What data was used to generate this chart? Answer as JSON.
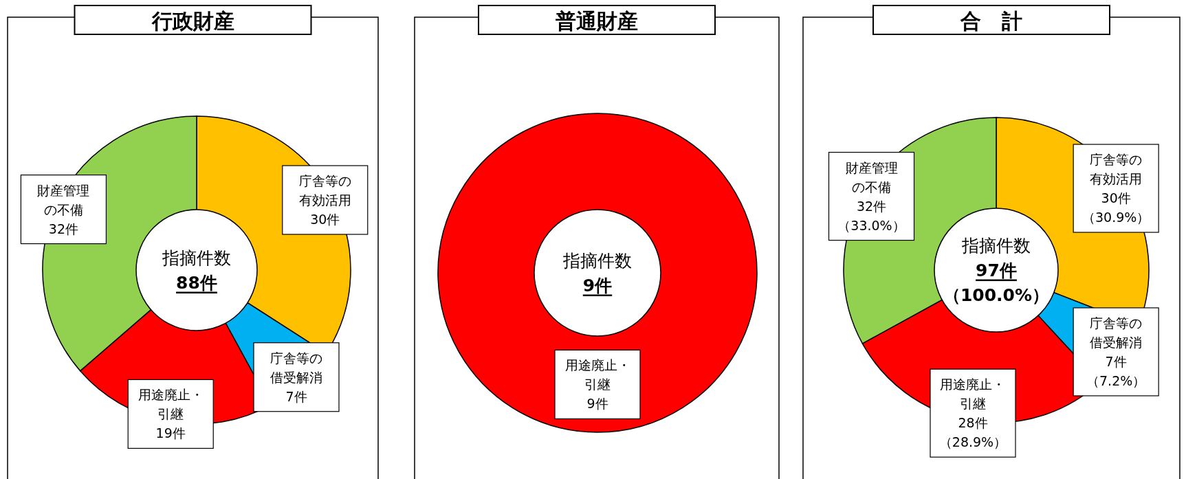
{
  "chart_data": [
    {
      "type": "donut",
      "title": "行政財産",
      "categories": [
        "庁舎等の有効活用",
        "庁舎等の借受解消",
        "用途廃止・引継",
        "財産管理の不備"
      ],
      "values": [
        30,
        7,
        19,
        32
      ],
      "value_labels": [
        "30件",
        "7件",
        "19件",
        "32件"
      ],
      "colors": [
        "#ffc000",
        "#00b0f0",
        "#ff0000",
        "#92d050"
      ],
      "annotations": [
        "指摘件数",
        "88件"
      ]
    },
    {
      "type": "donut",
      "title": "普通財産",
      "categories": [
        "用途廃止・引継"
      ],
      "values": [
        9
      ],
      "value_labels": [
        "9件"
      ],
      "colors": [
        "#ff0000"
      ],
      "annotations": [
        "指摘件数",
        "9件"
      ]
    },
    {
      "type": "donut",
      "title": "合　計",
      "categories": [
        "庁舎等の有効活用",
        "庁舎等の借受解消",
        "用途廃止・引継",
        "財産管理の不備"
      ],
      "values": [
        30,
        7,
        28,
        32
      ],
      "value_labels": [
        "30件（30.9%）",
        "7件（7.2%）",
        "28件（28.9%）",
        "32件（33.0%）"
      ],
      "colors": [
        "#ffc000",
        "#00b0f0",
        "#ff0000",
        "#92d050"
      ],
      "annotations": [
        "指摘件数",
        "97件",
        "（100.0%）"
      ]
    }
  ]
}
